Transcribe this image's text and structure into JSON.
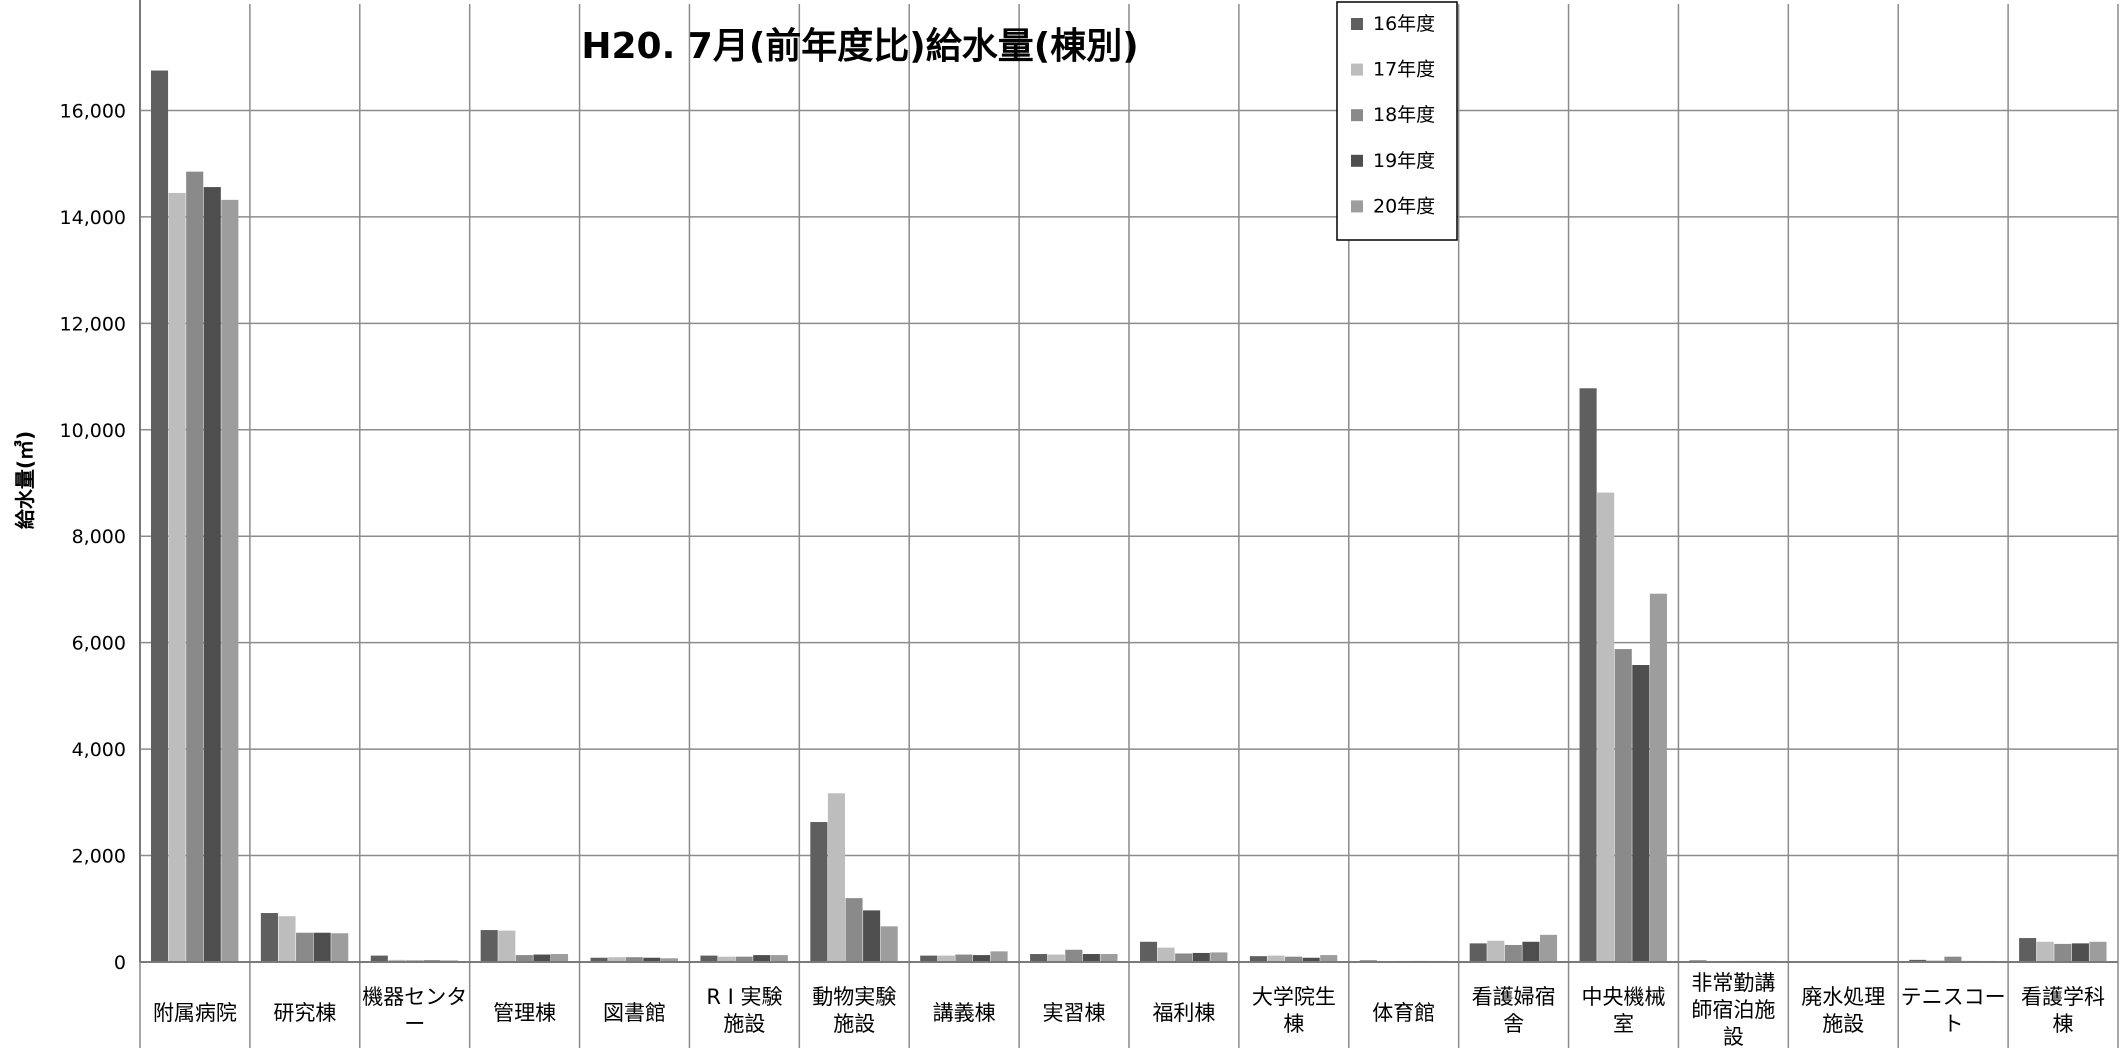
{
  "chart_data": {
    "type": "bar",
    "title": "H20. 7月(前年度比)給水量(棟別)",
    "xlabel": "",
    "ylabel": "給水量(㎥)",
    "ylim": [
      0,
      18000
    ],
    "yticks": [
      0,
      2000,
      4000,
      6000,
      8000,
      10000,
      12000,
      14000,
      16000
    ],
    "ytick_labels": [
      "0",
      "2,000",
      "4,000",
      "6,000",
      "8,000",
      "10,000",
      "12,000",
      "14,000",
      "16,000"
    ],
    "grid": true,
    "legend_position": "top-right",
    "categories": [
      [
        "附属病院"
      ],
      [
        "研究棟"
      ],
      [
        "機器センタ",
        "ー"
      ],
      [
        "管理棟"
      ],
      [
        "図書館"
      ],
      [
        "R I 実験",
        "施設"
      ],
      [
        "動物実験",
        "施設"
      ],
      [
        "講義棟"
      ],
      [
        "実習棟"
      ],
      [
        "福利棟"
      ],
      [
        "大学院生",
        "棟"
      ],
      [
        "体育館"
      ],
      [
        "看護婦宿",
        "舎"
      ],
      [
        "中央機械",
        "室"
      ],
      [
        "非常勤講",
        "師宿泊施",
        "設"
      ],
      [
        "廃水処理",
        "施設"
      ],
      [
        "テニスコー",
        "ト"
      ],
      [
        "看護学科",
        "棟"
      ]
    ],
    "series": [
      {
        "name": "16年度",
        "color": "#5f5f5f",
        "values": [
          16750,
          920,
          120,
          600,
          80,
          120,
          2630,
          120,
          150,
          380,
          110,
          30,
          350,
          10780,
          30,
          0,
          40,
          450
        ]
      },
      {
        "name": "17年度",
        "color": "#bdbdbd",
        "values": [
          14450,
          860,
          40,
          590,
          90,
          100,
          3170,
          120,
          140,
          270,
          120,
          20,
          400,
          8820,
          20,
          0,
          30,
          380
        ]
      },
      {
        "name": "18年度",
        "color": "#8a8a8a",
        "values": [
          14850,
          550,
          30,
          130,
          90,
          100,
          1200,
          140,
          230,
          160,
          100,
          20,
          320,
          5880,
          20,
          0,
          100,
          340
        ]
      },
      {
        "name": "19年度",
        "color": "#4e4e4e",
        "values": [
          14560,
          550,
          30,
          140,
          80,
          130,
          970,
          130,
          150,
          170,
          80,
          20,
          380,
          5580,
          20,
          0,
          20,
          350
        ]
      },
      {
        "name": "20年度",
        "color": "#9d9d9d",
        "values": [
          14320,
          540,
          30,
          150,
          70,
          130,
          670,
          200,
          150,
          180,
          130,
          20,
          510,
          6920,
          20,
          0,
          20,
          380
        ]
      }
    ]
  }
}
